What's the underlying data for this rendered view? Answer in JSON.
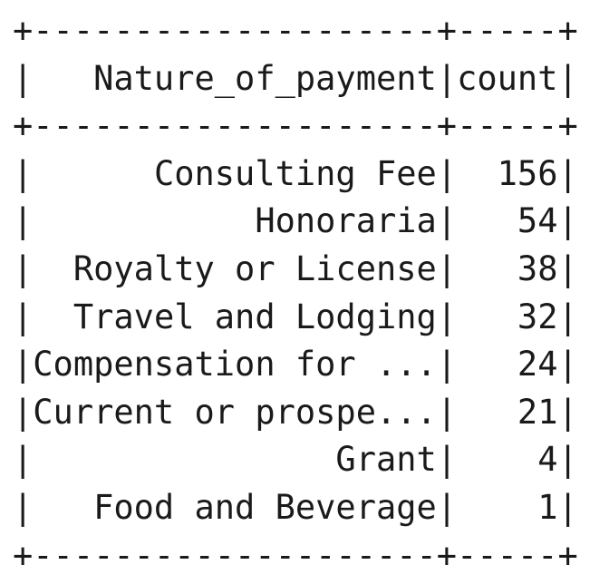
{
  "table": {
    "header": {
      "col1": "Nature_of_payment",
      "col2": "count"
    },
    "rows": [
      {
        "nature": "Consulting Fee",
        "count": "156"
      },
      {
        "nature": "Honoraria",
        "count": "54"
      },
      {
        "nature": "Royalty or License",
        "count": "38"
      },
      {
        "nature": "Travel and Lodging",
        "count": "32"
      },
      {
        "nature": "Compensation for ...",
        "count": "24"
      },
      {
        "nature": "Current or prospe...",
        "count": "21"
      },
      {
        "nature": "Grant",
        "count": "4"
      },
      {
        "nature": "Food and Beverage",
        "count": "1"
      }
    ]
  }
}
